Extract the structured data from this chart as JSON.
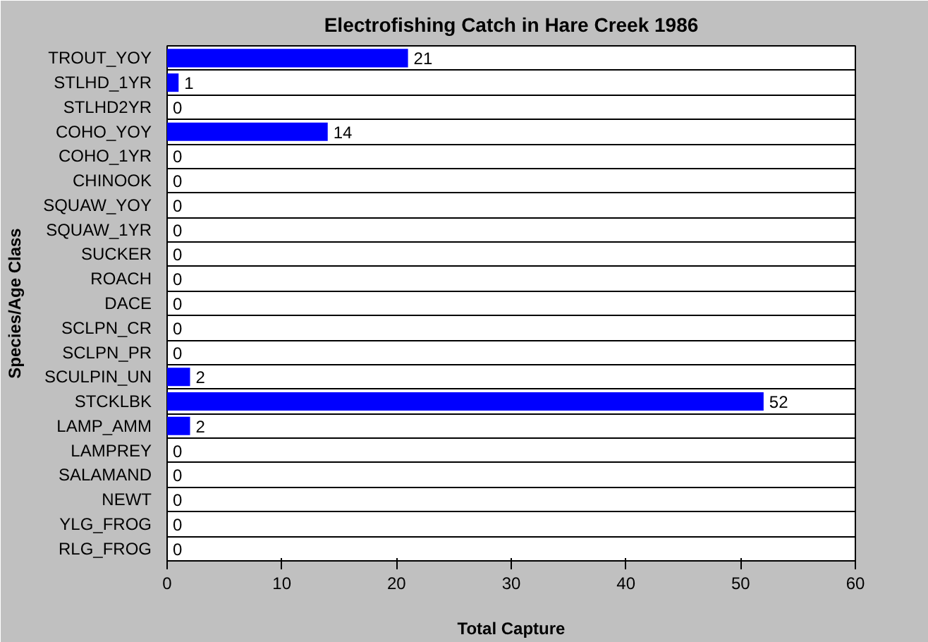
{
  "chart_data": {
    "type": "bar",
    "orientation": "horizontal",
    "title": "Electrofishing Catch in Hare Creek 1986",
    "xlabel": "Total Capture",
    "ylabel": "Species/Age Class",
    "categories": [
      "TROUT_YOY",
      "STLHD_1YR",
      "STLHD2YR",
      "COHO_YOY",
      "COHO_1YR",
      "CHINOOK",
      "SQUAW_YOY",
      "SQUAW_1YR",
      "SUCKER",
      "ROACH",
      "DACE",
      "SCLPN_CR",
      "SCLPN_PR",
      "SCULPIN_UN",
      "STCKLBK",
      "LAMP_AMM",
      "LAMPREY",
      "SALAMAND",
      "NEWT",
      "YLG_FROG",
      "RLG_FROG"
    ],
    "values": [
      21,
      1,
      0,
      14,
      0,
      0,
      0,
      0,
      0,
      0,
      0,
      0,
      0,
      2,
      52,
      2,
      0,
      0,
      0,
      0,
      0
    ],
    "color": "#0000ff",
    "xlim": [
      0,
      60
    ],
    "xticks": [
      0,
      10,
      20,
      30,
      40,
      50,
      60
    ],
    "grid": "y",
    "data_labels": true
  }
}
